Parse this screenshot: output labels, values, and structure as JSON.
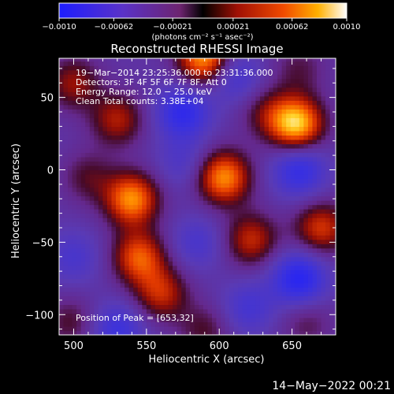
{
  "chart_data": {
    "type": "heatmap",
    "title": "Reconstructed RHESSI Image",
    "xlabel": "Heliocentric X (arcsec)",
    "ylabel": "Heliocentric Y (arcsec)",
    "xlim": [
      490,
      680
    ],
    "ylim": [
      -114,
      77
    ],
    "x_ticks": [
      500,
      550,
      600,
      650
    ],
    "y_ticks": [
      -100,
      -50,
      0,
      50
    ],
    "colorbar": {
      "label": "(photons cm⁻² s⁻¹ asec⁻²)",
      "range": [
        -0.001,
        0.001
      ],
      "ticks": [
        "−0.0010",
        "−0.00062",
        "−0.00021",
        "0.00021",
        "0.00062",
        "0.0010"
      ],
      "tick_values": [
        -0.001,
        -0.00062,
        -0.00021,
        0.00021,
        0.00062,
        0.001
      ]
    },
    "annotations": [
      "19−Mar−2014 23:25:36.000 to 23:31:36.000",
      "Detectors: 3F 4F 5F 6F 7F 8F, Att 0",
      "Energy Range: 12.0 − 25.0 keV",
      "Clean    Total counts: 3.38E+04"
    ],
    "peak_label": "Position of Peak = [653,32]",
    "sources": [
      {
        "x": 653,
        "y": 32,
        "value": 1.0
      },
      {
        "x": 590,
        "y": 77,
        "value": 0.9
      },
      {
        "x": 540,
        "y": -20,
        "value": 0.85
      },
      {
        "x": 545,
        "y": -60,
        "value": 0.7
      },
      {
        "x": 560,
        "y": -85,
        "value": 0.55
      },
      {
        "x": 603,
        "y": -5,
        "value": 0.85
      },
      {
        "x": 622,
        "y": -48,
        "value": 0.55
      },
      {
        "x": 670,
        "y": -40,
        "value": 0.6
      },
      {
        "x": 500,
        "y": 60,
        "value": 0.45
      },
      {
        "x": 530,
        "y": 35,
        "value": 0.5
      },
      {
        "x": 510,
        "y": -5,
        "value": 0.3
      },
      {
        "x": 655,
        "y": 70,
        "value": 0.25
      },
      {
        "x": 590,
        "y": -110,
        "value": 0.3
      },
      {
        "x": 660,
        "y": -105,
        "value": 0.25
      },
      {
        "x": 498,
        "y": -105,
        "value": 0.3
      },
      {
        "x": 632,
        "y": 40,
        "value": 0.3
      }
    ],
    "dips": [
      {
        "x": 575,
        "y": 40,
        "value": -0.6
      },
      {
        "x": 610,
        "y": 65,
        "value": -0.4
      },
      {
        "x": 655,
        "y": 0,
        "value": -0.55
      },
      {
        "x": 655,
        "y": -75,
        "value": -0.7
      },
      {
        "x": 530,
        "y": -110,
        "value": -0.45
      },
      {
        "x": 500,
        "y": -60,
        "value": -0.3
      },
      {
        "x": 620,
        "y": -95,
        "value": -0.35
      },
      {
        "x": 585,
        "y": -50,
        "value": -0.3
      },
      {
        "x": 575,
        "y": 5,
        "value": -0.25
      }
    ]
  },
  "date_stamp": "14−May−2022 00:21"
}
